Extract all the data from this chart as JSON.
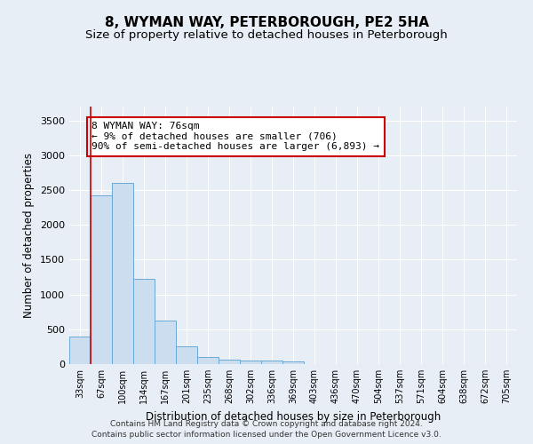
{
  "title": "8, WYMAN WAY, PETERBOROUGH, PE2 5HA",
  "subtitle": "Size of property relative to detached houses in Peterborough",
  "xlabel": "Distribution of detached houses by size in Peterborough",
  "ylabel": "Number of detached properties",
  "footnote1": "Contains HM Land Registry data © Crown copyright and database right 2024.",
  "footnote2": "Contains public sector information licensed under the Open Government Licence v3.0.",
  "categories": [
    "33sqm",
    "67sqm",
    "100sqm",
    "134sqm",
    "167sqm",
    "201sqm",
    "235sqm",
    "268sqm",
    "302sqm",
    "336sqm",
    "369sqm",
    "403sqm",
    "436sqm",
    "470sqm",
    "504sqm",
    "537sqm",
    "571sqm",
    "604sqm",
    "638sqm",
    "672sqm",
    "705sqm"
  ],
  "values": [
    400,
    2420,
    2600,
    1220,
    630,
    250,
    100,
    70,
    55,
    50,
    40,
    0,
    0,
    0,
    0,
    0,
    0,
    0,
    0,
    0,
    0
  ],
  "bar_color": "#ccddf0",
  "bar_edge_color": "#6aaad4",
  "vline_x": 0.5,
  "vline_color": "#cc0000",
  "annotation_text": "8 WYMAN WAY: 76sqm\n← 9% of detached houses are smaller (706)\n90% of semi-detached houses are larger (6,893) →",
  "annotation_box_color": "#ffffff",
  "annotation_box_edge": "#cc0000",
  "ylim": [
    0,
    3700
  ],
  "yticks": [
    0,
    500,
    1000,
    1500,
    2000,
    2500,
    3000,
    3500
  ],
  "bg_color": "#e8eef5",
  "plot_bg_color": "#e8eef5",
  "grid_color": "#ffffff",
  "title_fontsize": 11,
  "subtitle_fontsize": 9.5
}
